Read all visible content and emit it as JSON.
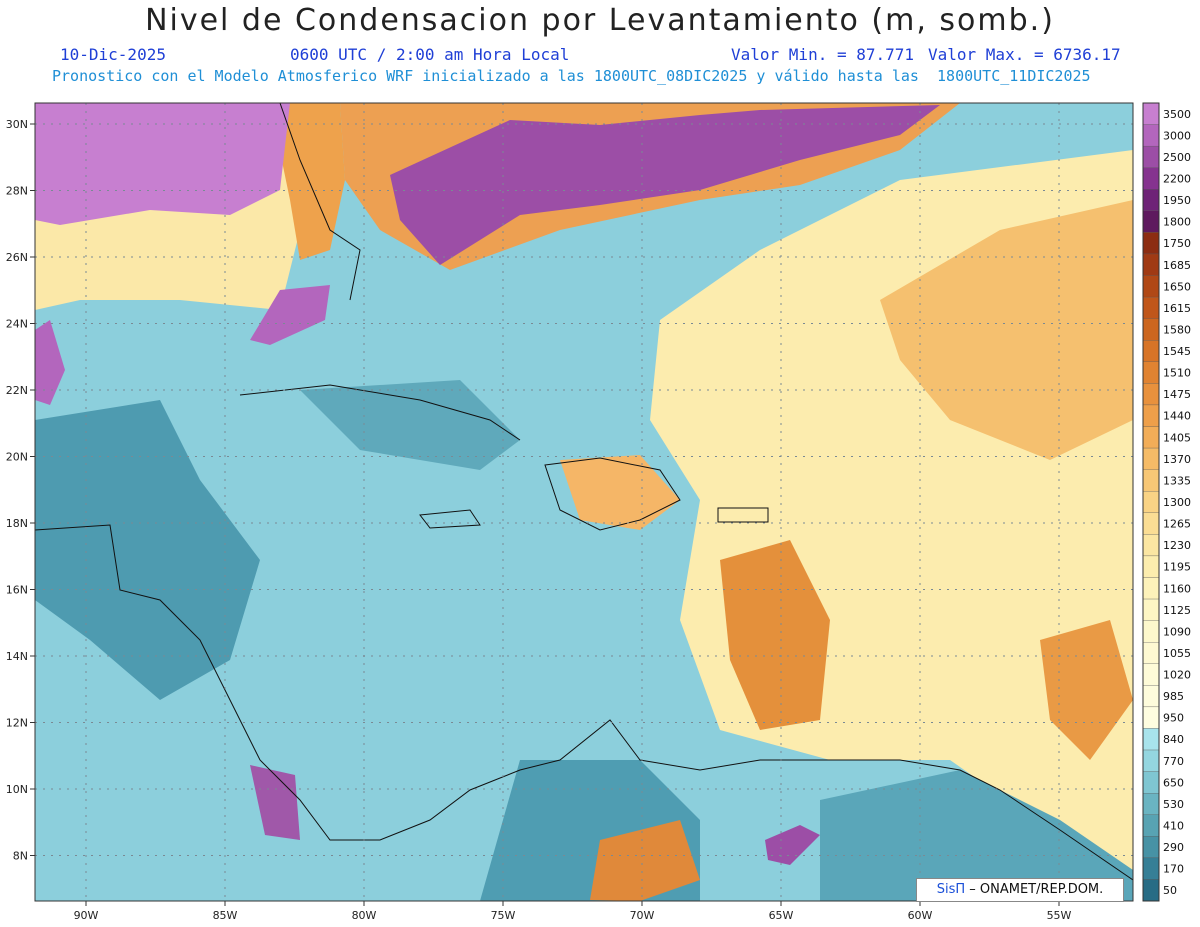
{
  "title": "Nivel de Condensacion por Levantamiento (m, somb.)",
  "date": "10-Dic-2025",
  "time": "0600 UTC / 2:00 am Hora Local",
  "value_min": "Valor Min. = 87.771",
  "value_max": "Valor Max. = 6736.17",
  "model_line": "Pronostico con el Modelo Atmosferico WRF inicializado a las 1800UTC_08DIC2025 y válido hasta las  1800UTC_11DIC2025",
  "credit_logo": "SisΠ",
  "credit_text": "– ONAMET/REP.DOM.",
  "lat_labels": [
    "30N",
    "28N",
    "26N",
    "24N",
    "22N",
    "20N",
    "18N",
    "16N",
    "14N",
    "12N",
    "10N",
    "8N"
  ],
  "lon_labels": [
    "90W",
    "85W",
    "80W",
    "75W",
    "70W",
    "65W",
    "60W",
    "55W"
  ],
  "legend": {
    "levels": [
      "3500",
      "3000",
      "2500",
      "2200",
      "1950",
      "1800",
      "1750",
      "1685",
      "1650",
      "1615",
      "1580",
      "1545",
      "1510",
      "1475",
      "1440",
      "1405",
      "1370",
      "1335",
      "1300",
      "1265",
      "1230",
      "1195",
      "1160",
      "1125",
      "1090",
      "1055",
      "1020",
      "985",
      "950",
      "840",
      "770",
      "650",
      "530",
      "410",
      "290",
      "170",
      "50"
    ],
    "colors": [
      "#c77fd0",
      "#b366bd",
      "#9c4ea6",
      "#85338f",
      "#6e2277",
      "#5e1a5e",
      "#8c2d12",
      "#a03a14",
      "#b04816",
      "#c0561a",
      "#cc661f",
      "#d77427",
      "#e08332",
      "#e8913d",
      "#ee9f4a",
      "#f2ad58",
      "#f5bb67",
      "#f7c776",
      "#f9d385",
      "#fadd94",
      "#fbe6a2",
      "#fcedae",
      "#fdf2ba",
      "#fdf6c4",
      "#fdf8cc",
      "#fef9d2",
      "#fefbd8",
      "#fefcdc",
      "#fefde0",
      "#a8e3ec",
      "#94d6e0",
      "#7fc6d2",
      "#6ab4c2",
      "#58a3b3",
      "#4792a5",
      "#367f96",
      "#276c85"
    ]
  }
}
